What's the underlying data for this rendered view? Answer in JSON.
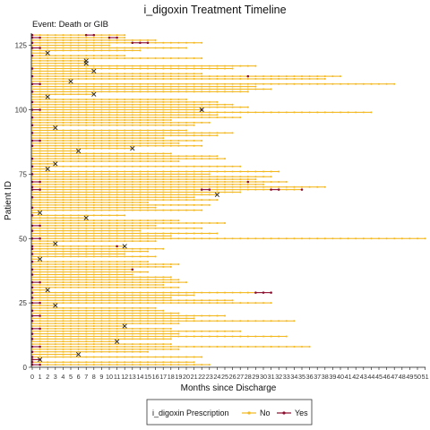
{
  "chart_data": {
    "type": "line",
    "title": "i_digoxin Treatment Timeline",
    "subtitle": "Event: Death or GIB",
    "xlabel": "Months since Discharge",
    "ylabel": "Patient ID",
    "xlim": [
      0,
      51
    ],
    "ylim": [
      0,
      130
    ],
    "x_ticks": [
      "0",
      "1",
      "2",
      "3",
      "4",
      "5",
      "6",
      "7",
      "8",
      "9",
      "10",
      "11",
      "12",
      "13",
      "14",
      "15",
      "16",
      "17",
      "18",
      "19",
      "20",
      "21",
      "22",
      "23",
      "24",
      "25",
      "26",
      "27",
      "28",
      "29",
      "30",
      "31",
      "32",
      "33",
      "34",
      "35",
      "36",
      "37",
      "38",
      "39",
      "40",
      "41",
      "42",
      "43",
      "44",
      "45",
      "46",
      "47",
      "48",
      "49",
      "50",
      "51"
    ],
    "y_ticks": [
      0,
      25,
      50,
      75,
      100,
      125
    ],
    "grid": false,
    "legend": {
      "title": "i_digoxin Prescription",
      "position": "bottom",
      "entries": [
        {
          "label": "No",
          "color": "#f4b81f"
        },
        {
          "label": "Yes",
          "color": "#8b0e2e"
        }
      ]
    },
    "colors": {
      "no": "#f4b81f",
      "yes": "#8b0e2e",
      "event": "#222222"
    },
    "patients": [
      {
        "id": 1,
        "end": 23,
        "yes": [
          0,
          1
        ]
      },
      {
        "id": 2,
        "end": 21,
        "yes": [
          0
        ]
      },
      {
        "id": 3,
        "end": 1,
        "yes": [
          0,
          1
        ],
        "event": 1
      },
      {
        "id": 4,
        "end": 22,
        "yes": [
          0
        ]
      },
      {
        "id": 5,
        "end": 6,
        "event": 6
      },
      {
        "id": 6,
        "end": 15,
        "yes": [
          0
        ]
      },
      {
        "id": 7,
        "end": 19
      },
      {
        "id": 8,
        "end": 36,
        "yes": [
          0,
          1
        ]
      },
      {
        "id": 9,
        "end": 18
      },
      {
        "id": 10,
        "end": 11,
        "event": 11
      },
      {
        "id": 11,
        "end": 18,
        "yes": [
          0
        ]
      },
      {
        "id": 12,
        "end": 33
      },
      {
        "id": 13,
        "end": 19,
        "yes": [
          0
        ]
      },
      {
        "id": 14,
        "end": 27
      },
      {
        "id": 15,
        "end": 18,
        "yes": [
          0,
          1
        ]
      },
      {
        "id": 16,
        "end": 12,
        "event": 12
      },
      {
        "id": 17,
        "end": 19
      },
      {
        "id": 18,
        "end": 34,
        "yes": [
          0
        ]
      },
      {
        "id": 19,
        "end": 21
      },
      {
        "id": 20,
        "end": 25,
        "yes": [
          0,
          1
        ]
      },
      {
        "id": 21,
        "end": 19
      },
      {
        "id": 22,
        "end": 17,
        "yes": [
          0
        ]
      },
      {
        "id": 23,
        "end": 16
      },
      {
        "id": 24,
        "end": 3,
        "event": 3
      },
      {
        "id": 25,
        "end": 31,
        "yes": [
          0,
          1
        ]
      },
      {
        "id": 26,
        "end": 26
      },
      {
        "id": 27,
        "end": 18,
        "yes": [
          0
        ]
      },
      {
        "id": 28,
        "end": 21
      },
      {
        "id": 29,
        "end": 31,
        "yes": [
          0,
          29,
          30,
          31
        ]
      },
      {
        "id": 30,
        "end": 2,
        "event": 2
      },
      {
        "id": 31,
        "end": 19,
        "yes": [
          0
        ]
      },
      {
        "id": 32,
        "end": 17
      },
      {
        "id": 33,
        "end": 20,
        "yes": [
          0,
          1
        ]
      },
      {
        "id": 34,
        "end": 19
      },
      {
        "id": 35,
        "end": 18
      },
      {
        "id": 36,
        "end": 13,
        "yes": [
          0
        ]
      },
      {
        "id": 37,
        "end": 15
      },
      {
        "id": 38,
        "end": 13,
        "yes": [
          0,
          13
        ]
      },
      {
        "id": 39,
        "end": 18
      },
      {
        "id": 40,
        "end": 19
      },
      {
        "id": 41,
        "end": 15,
        "yes": [
          0
        ]
      },
      {
        "id": 42,
        "end": 1,
        "event": 1
      },
      {
        "id": 43,
        "end": 16
      },
      {
        "id": 44,
        "end": 12,
        "yes": [
          0
        ]
      },
      {
        "id": 45,
        "end": 15
      },
      {
        "id": 46,
        "end": 17,
        "yes": [
          0
        ]
      },
      {
        "id": 47,
        "end": 12,
        "yes": [
          0,
          11
        ],
        "event": 12
      },
      {
        "id": 48,
        "end": 3,
        "event": 3
      },
      {
        "id": 49,
        "end": 16
      },
      {
        "id": 50,
        "end": 51,
        "yes": [
          0,
          1
        ]
      },
      {
        "id": 51,
        "end": 18
      },
      {
        "id": 52,
        "end": 24
      },
      {
        "id": 53,
        "end": 14,
        "yes": [
          0
        ]
      },
      {
        "id": 54,
        "end": 22
      },
      {
        "id": 55,
        "end": 16,
        "yes": [
          0,
          1
        ]
      },
      {
        "id": 56,
        "end": 25
      },
      {
        "id": 57,
        "end": 19
      },
      {
        "id": 58,
        "end": 7,
        "event": 7
      },
      {
        "id": 59,
        "end": 12,
        "yes": [
          0
        ]
      },
      {
        "id": 60,
        "end": 1,
        "event": 1
      },
      {
        "id": 61,
        "end": 22
      },
      {
        "id": 62,
        "end": 16,
        "yes": [
          0
        ]
      },
      {
        "id": 63,
        "end": 23
      },
      {
        "id": 64,
        "end": 15
      },
      {
        "id": 65,
        "end": 24
      },
      {
        "id": 66,
        "end": 21,
        "yes": [
          0
        ]
      },
      {
        "id": 67,
        "end": 24,
        "event": 24
      },
      {
        "id": 68,
        "end": 27
      },
      {
        "id": 69,
        "end": 35,
        "yes": [
          0,
          1,
          22,
          23,
          31,
          32,
          35
        ]
      },
      {
        "id": 70,
        "end": 38,
        "yes": [
          0
        ]
      },
      {
        "id": 71,
        "end": 30
      },
      {
        "id": 72,
        "end": 33,
        "yes": [
          0,
          1,
          28
        ]
      },
      {
        "id": 73,
        "end": 29
      },
      {
        "id": 74,
        "end": 31
      },
      {
        "id": 75,
        "end": 23,
        "yes": [
          0
        ]
      },
      {
        "id": 76,
        "end": 32
      },
      {
        "id": 77,
        "end": 2,
        "event": 2
      },
      {
        "id": 78,
        "end": 27,
        "yes": [
          0
        ]
      },
      {
        "id": 79,
        "end": 3,
        "event": 3
      },
      {
        "id": 80,
        "end": 19
      },
      {
        "id": 81,
        "end": 25,
        "yes": [
          0
        ]
      },
      {
        "id": 82,
        "end": 24
      },
      {
        "id": 83,
        "end": 18
      },
      {
        "id": 84,
        "end": 6,
        "event": 6
      },
      {
        "id": 85,
        "end": 13,
        "event": 13
      },
      {
        "id": 86,
        "end": 22,
        "yes": [
          0
        ]
      },
      {
        "id": 87,
        "end": 19
      },
      {
        "id": 88,
        "end": 22,
        "yes": [
          0,
          1
        ]
      },
      {
        "id": 89,
        "end": 17
      },
      {
        "id": 90,
        "end": 24
      },
      {
        "id": 91,
        "end": 26,
        "yes": [
          0
        ]
      },
      {
        "id": 92,
        "end": 20
      },
      {
        "id": 93,
        "end": 3,
        "event": 3
      },
      {
        "id": 94,
        "end": 21,
        "yes": [
          0
        ]
      },
      {
        "id": 95,
        "end": 23
      },
      {
        "id": 96,
        "end": 18
      },
      {
        "id": 97,
        "end": 27,
        "yes": [
          0
        ]
      },
      {
        "id": 98,
        "end": 24
      },
      {
        "id": 99,
        "end": 44
      },
      {
        "id": 100,
        "end": 22,
        "yes": [
          0,
          1,
          22
        ],
        "event": 22
      },
      {
        "id": 101,
        "end": 28
      },
      {
        "id": 102,
        "end": 26
      },
      {
        "id": 103,
        "end": 24,
        "yes": [
          0
        ]
      },
      {
        "id": 104,
        "end": 20
      },
      {
        "id": 105,
        "end": 2,
        "event": 2
      },
      {
        "id": 106,
        "end": 8,
        "event": 8
      },
      {
        "id": 107,
        "end": 28,
        "yes": [
          0
        ]
      },
      {
        "id": 108,
        "end": 31
      },
      {
        "id": 109,
        "end": 29
      },
      {
        "id": 110,
        "end": 47,
        "yes": [
          0,
          1
        ]
      },
      {
        "id": 111,
        "end": 5,
        "event": 5
      },
      {
        "id": 112,
        "end": 38
      },
      {
        "id": 113,
        "end": 40,
        "yes": [
          0,
          28
        ]
      },
      {
        "id": 114,
        "end": 22
      },
      {
        "id": 115,
        "end": 8,
        "event": 8
      },
      {
        "id": 116,
        "end": 26,
        "yes": [
          0
        ]
      },
      {
        "id": 117,
        "end": 29
      },
      {
        "id": 118,
        "end": 7,
        "event": 7
      },
      {
        "id": 119,
        "end": 7,
        "event": 7
      },
      {
        "id": 120,
        "end": 22
      },
      {
        "id": 121,
        "end": 12,
        "yes": [
          0
        ]
      },
      {
        "id": 122,
        "end": 2,
        "event": 2
      },
      {
        "id": 123,
        "end": 14
      },
      {
        "id": 124,
        "end": 20,
        "yes": [
          0,
          1
        ]
      },
      {
        "id": 125,
        "end": 10
      },
      {
        "id": 126,
        "end": 22,
        "yes": [
          0,
          13,
          14,
          15
        ]
      },
      {
        "id": 127,
        "end": 16
      },
      {
        "id": 128,
        "end": 12,
        "yes": [
          0,
          1,
          10,
          11
        ]
      },
      {
        "id": 129,
        "end": 12,
        "yes": [
          0,
          7,
          8
        ]
      }
    ]
  }
}
